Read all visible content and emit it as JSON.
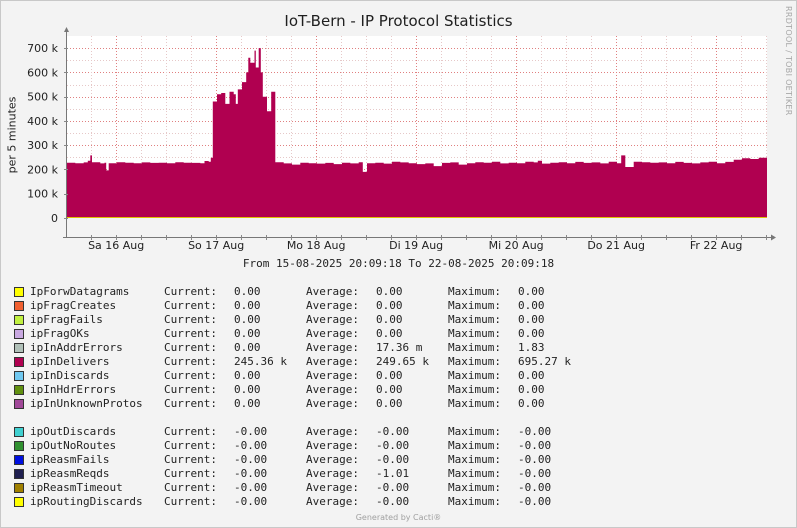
{
  "watermark": "RRDTOOL / TOBI OETIKER",
  "footer": "Generated by Cacti®",
  "range_text": "From 15-08-2025 20:09:18 To 22-08-2025 20:09:18",
  "colors": {
    "area": "#b00050",
    "background": "#f3f3f3",
    "plot": "#ffffff",
    "grid": "#e08080",
    "line": "#e0c000"
  },
  "chart_data": {
    "type": "area",
    "title": "IoT-Bern - IP Protocol Statistics",
    "ylabel": "per 5 minutes",
    "ylim": [
      0,
      750000
    ],
    "yticks": [
      0,
      100000,
      200000,
      300000,
      400000,
      500000,
      600000,
      700000
    ],
    "ytick_labels": [
      "0",
      "100 k",
      "200 k",
      "300 k",
      "400 k",
      "500 k",
      "600 k",
      "700 k"
    ],
    "xlim": [
      0,
      168
    ],
    "xticks": [
      11.8,
      35.8,
      59.8,
      83.8,
      107.8,
      131.8,
      155.8
    ],
    "xtick_labels": [
      "Sa 16 Aug",
      "So 17 Aug",
      "Mo 18 Aug",
      "Di 19 Aug",
      "Mi 20 Aug",
      "Do 21 Aug",
      "Fr 22 Aug"
    ],
    "grid": true,
    "series": [
      {
        "name": "ipInDelivers",
        "color": "#b00050",
        "x": [
          0,
          2,
          4,
          5,
          5.6,
          6,
          8,
          9,
          9.4,
          10,
          12,
          14,
          16,
          18,
          20,
          22,
          24,
          26,
          28,
          30,
          32,
          33,
          34,
          34.5,
          35,
          36,
          37,
          38,
          39,
          40,
          40.5,
          41,
          42,
          43,
          43.5,
          44,
          45,
          45.3,
          46,
          46.5,
          47,
          48,
          49,
          50,
          52,
          54,
          56,
          58,
          60,
          62,
          64,
          66,
          68,
          70,
          71,
          72,
          74,
          76,
          78,
          80,
          82,
          84,
          86,
          88,
          90,
          92,
          94,
          96,
          98,
          100,
          102,
          104,
          106,
          108,
          110,
          112,
          113,
          114,
          116,
          118,
          120,
          122,
          124,
          126,
          128,
          130,
          132,
          133,
          134,
          136,
          138,
          140,
          142,
          144,
          146,
          148,
          150,
          152,
          154,
          156,
          158,
          160,
          162,
          164,
          166,
          168
        ],
        "values": [
          228000,
          226000,
          229000,
          236000,
          258000,
          230000,
          225000,
          228000,
          196000,
          226000,
          230000,
          228000,
          226000,
          229000,
          227000,
          228000,
          226000,
          230000,
          228000,
          227000,
          226000,
          235000,
          232000,
          248000,
          480000,
          510000,
          515000,
          470000,
          520000,
          510000,
          470000,
          530000,
          560000,
          600000,
          660000,
          640000,
          690000,
          620000,
          700000,
          600000,
          500000,
          440000,
          520000,
          230000,
          225000,
          220000,
          228000,
          226000,
          224000,
          227000,
          222000,
          228000,
          225000,
          230000,
          190000,
          226000,
          228000,
          224000,
          232000,
          229000,
          226000,
          222000,
          225000,
          214000,
          227000,
          229000,
          220000,
          226000,
          230000,
          228000,
          232000,
          225000,
          228000,
          226000,
          232000,
          229000,
          236000,
          224000,
          228000,
          230000,
          226000,
          231000,
          227000,
          229000,
          225000,
          232000,
          226000,
          258000,
          210000,
          232000,
          230000,
          228000,
          229000,
          226000,
          231000,
          227000,
          225000,
          229000,
          232000,
          226000,
          231000,
          240000,
          246000,
          243000,
          248000,
          246000
        ]
      },
      {
        "name": "IpForwDatagrams",
        "color": "#e0c000",
        "values": [
          0
        ]
      }
    ]
  },
  "legend_groups": [
    [
      {
        "name": "IpForwDatagrams",
        "color": "#ffff00",
        "cur_label": "Current:",
        "cur": "0.00",
        "avg_label": "Average:",
        "avg": "0.00",
        "max_label": "Maximum:",
        "max": "0.00"
      },
      {
        "name": "ipFragCreates",
        "color": "#f06030",
        "cur_label": "Current:",
        "cur": "0.00",
        "avg_label": "Average:",
        "avg": "0.00",
        "max_label": "Maximum:",
        "max": "0.00"
      },
      {
        "name": "ipFragFails",
        "color": "#c0f040",
        "cur_label": "Current:",
        "cur": "0.00",
        "avg_label": "Average:",
        "avg": "0.00",
        "max_label": "Maximum:",
        "max": "0.00"
      },
      {
        "name": "ipFragOKs",
        "color": "#c8a8e0",
        "cur_label": "Current:",
        "cur": "0.00",
        "avg_label": "Average:",
        "avg": "0.00",
        "max_label": "Maximum:",
        "max": "0.00"
      },
      {
        "name": "ipInAddrErrors",
        "color": "#b0c0b8",
        "cur_label": "Current:",
        "cur": "0.00",
        "avg_label": "Average:",
        "avg": "17.36 m",
        "max_label": "Maximum:",
        "max": "1.83"
      },
      {
        "name": "ipInDelivers",
        "color": "#b00050",
        "cur_label": "Current:",
        "cur": "245.36 k",
        "avg_label": "Average:",
        "avg": "249.65 k",
        "max_label": "Maximum:",
        "max": "695.27 k"
      },
      {
        "name": "ipInDiscards",
        "color": "#70c8f0",
        "cur_label": "Current:",
        "cur": "0.00",
        "avg_label": "Average:",
        "avg": "0.00",
        "max_label": "Maximum:",
        "max": "0.00"
      },
      {
        "name": "ipInHdrErrors",
        "color": "#609010",
        "cur_label": "Current:",
        "cur": "0.00",
        "avg_label": "Average:",
        "avg": "0.00",
        "max_label": "Maximum:",
        "max": "0.00"
      },
      {
        "name": "ipInUnknownProtos",
        "color": "#a04898",
        "cur_label": "Current:",
        "cur": "0.00",
        "avg_label": "Average:",
        "avg": "0.00",
        "max_label": "Maximum:",
        "max": "0.00"
      }
    ],
    [
      {
        "name": "ipOutDiscards",
        "color": "#40d0d0",
        "cur_label": "Current:",
        "cur": "-0.00",
        "avg_label": "Average:",
        "avg": "-0.00",
        "max_label": "Maximum:",
        "max": "-0.00"
      },
      {
        "name": "ipOutNoRoutes",
        "color": "#309030",
        "cur_label": "Current:",
        "cur": "-0.00",
        "avg_label": "Average:",
        "avg": "-0.00",
        "max_label": "Maximum:",
        "max": "-0.00"
      },
      {
        "name": "ipReasmFails",
        "color": "#0010e0",
        "cur_label": "Current:",
        "cur": "-0.00",
        "avg_label": "Average:",
        "avg": "-0.00",
        "max_label": "Maximum:",
        "max": "-0.00"
      },
      {
        "name": "ipReasmReqds",
        "color": "#202050",
        "cur_label": "Current:",
        "cur": "-0.00",
        "avg_label": "Average:",
        "avg": "-1.01",
        "max_label": "Maximum:",
        "max": "-0.00"
      },
      {
        "name": "ipReasmTimeout",
        "color": "#a08000",
        "cur_label": "Current:",
        "cur": "-0.00",
        "avg_label": "Average:",
        "avg": "-0.00",
        "max_label": "Maximum:",
        "max": "-0.00"
      },
      {
        "name": "ipRoutingDiscards",
        "color": "#ffff00",
        "cur_label": "Current:",
        "cur": "-0.00",
        "avg_label": "Average:",
        "avg": "-0.00",
        "max_label": "Maximum:",
        "max": "-0.00"
      }
    ]
  ]
}
